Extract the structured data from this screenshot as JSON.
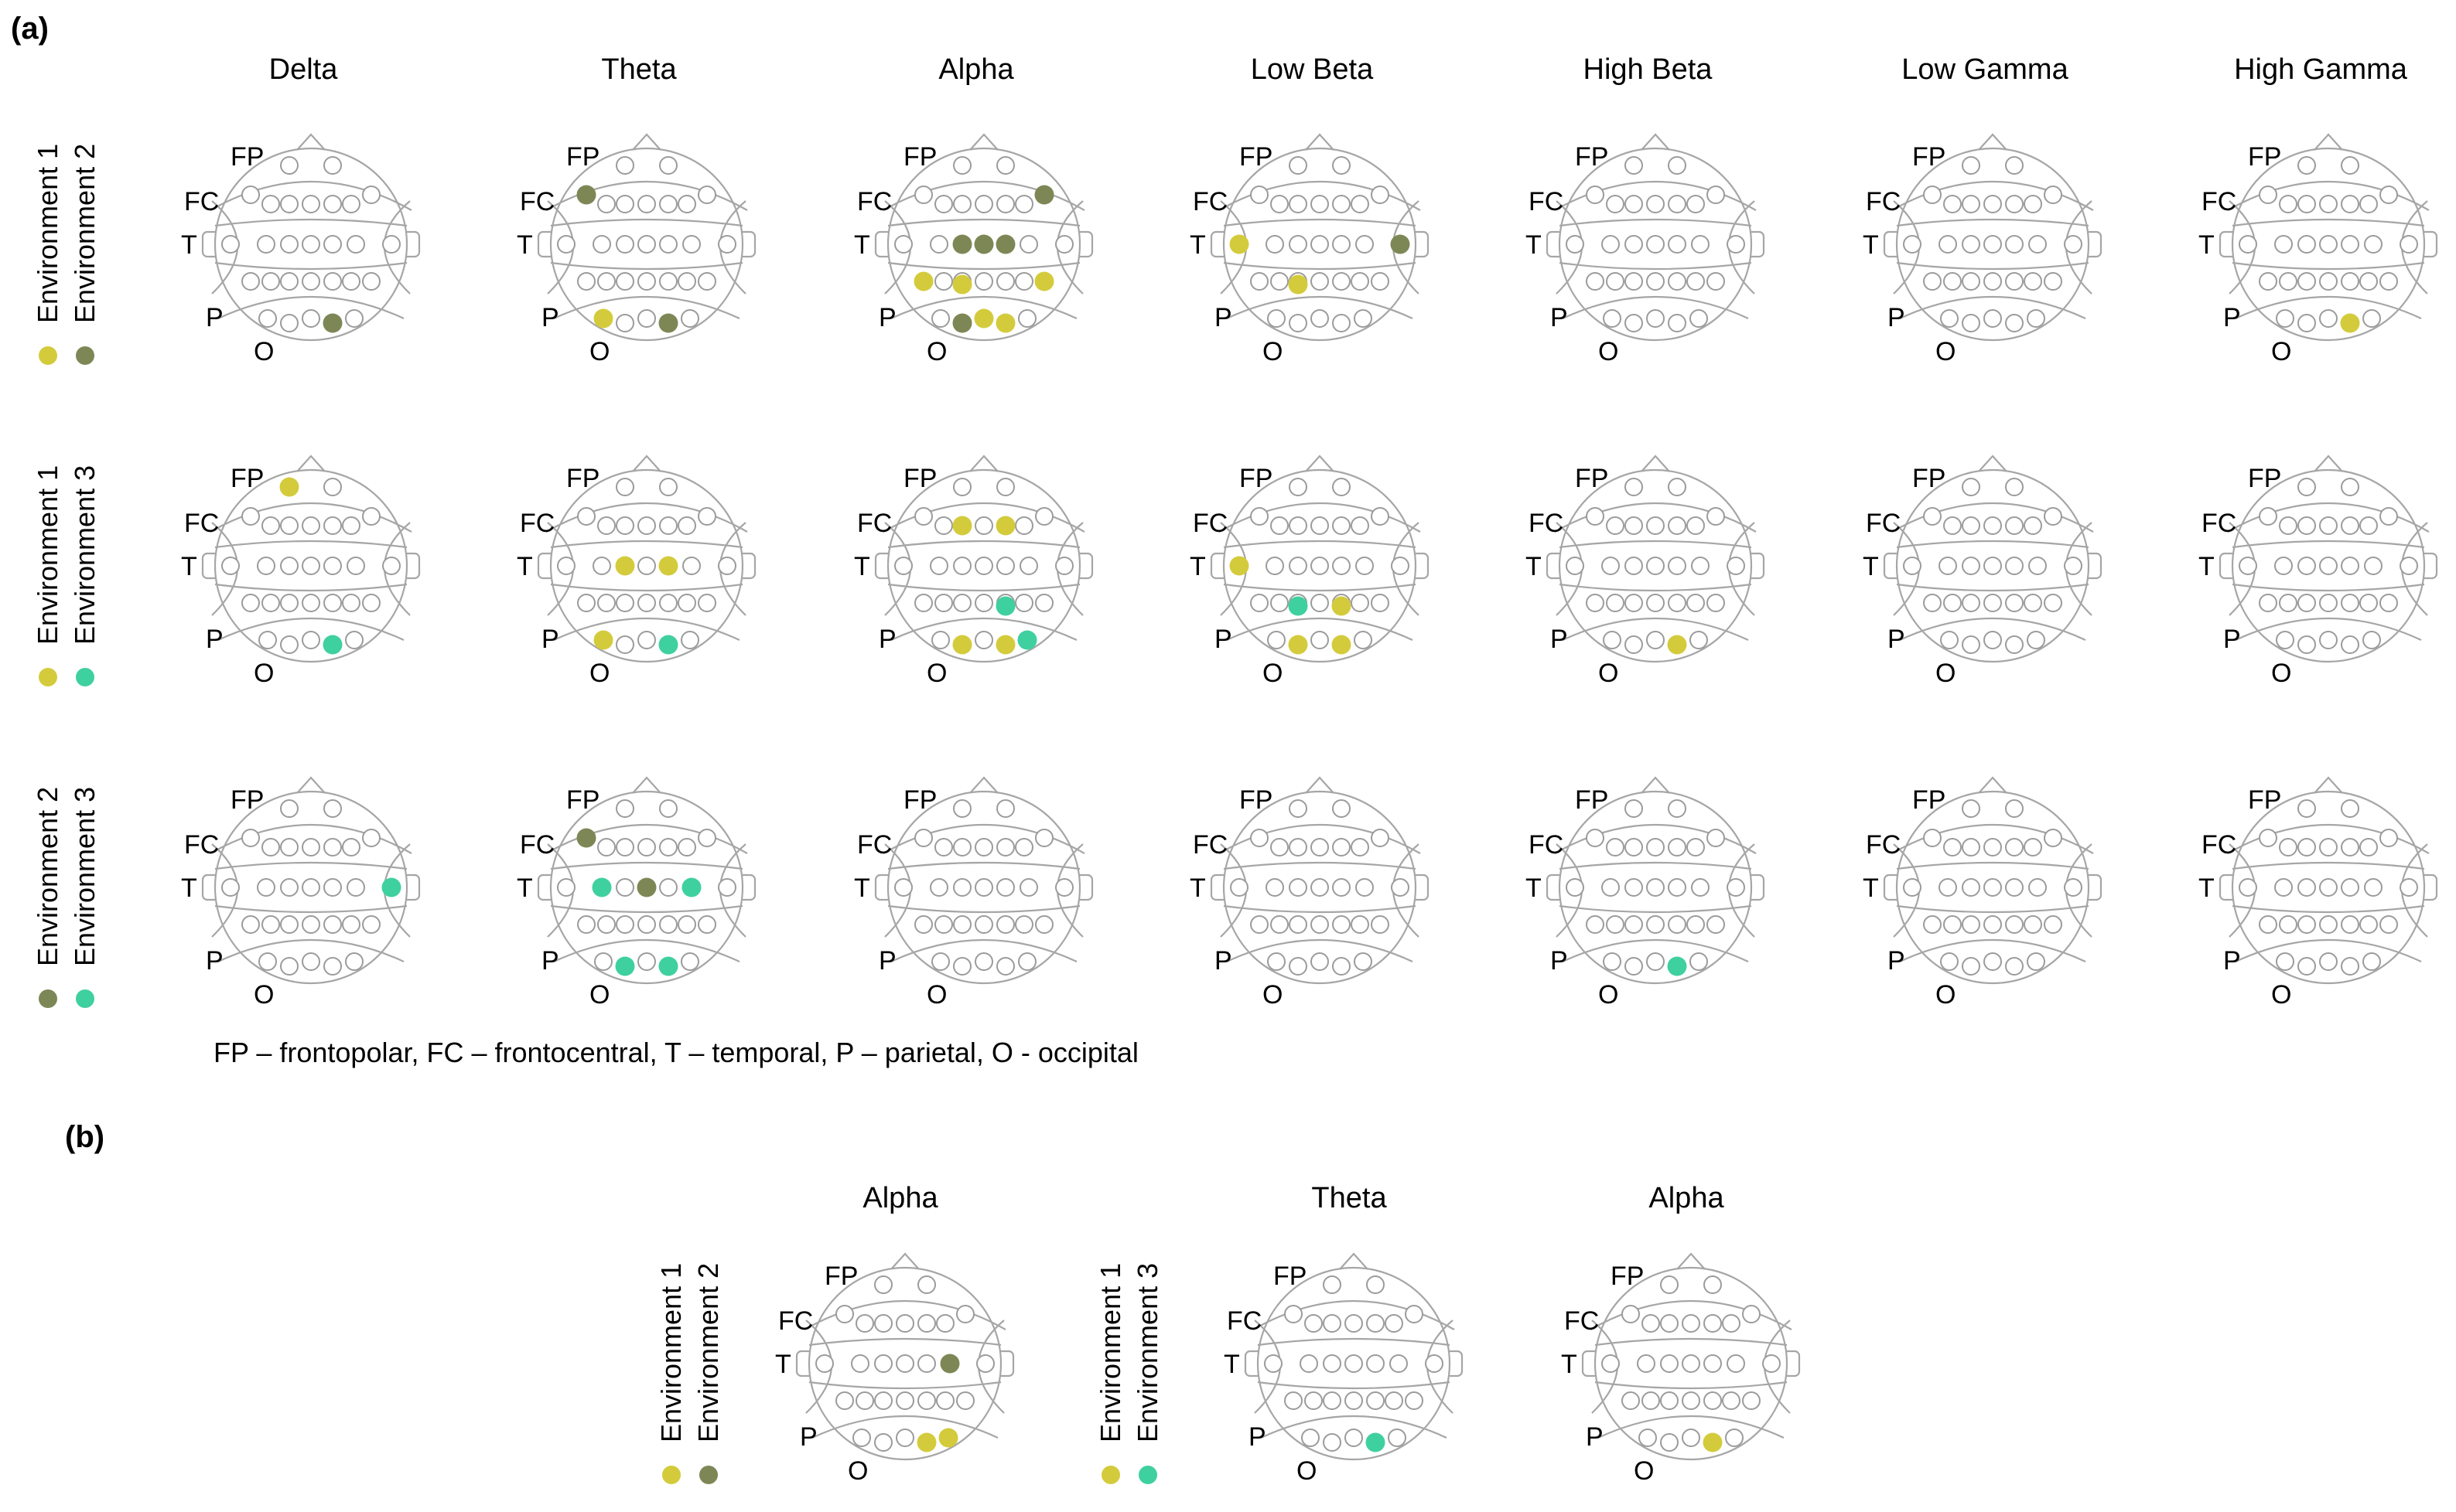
{
  "panel_labels": {
    "a": "(a)",
    "b": "(b)"
  },
  "colors": {
    "env1": "#d4cb3c",
    "env2": "#7d8756",
    "env3": "#3fd0a0",
    "outline": "#a6a6a6"
  },
  "region_labels": {
    "FP": "FP",
    "FC": "FC",
    "T": "T",
    "P": "P",
    "O": "O"
  },
  "footnote": "FP – frontopolar, FC – frontocentral, T – temporal, P – parietal, O - occipital",
  "panel_a": {
    "bands": [
      "Delta",
      "Theta",
      "Alpha",
      "Low Beta",
      "High Beta",
      "Low Gamma",
      "High Gamma"
    ],
    "rows": [
      {
        "legend": [
          {
            "label": "Environment 1",
            "env": "env1"
          },
          {
            "label": "Environment 2",
            "env": "env2"
          }
        ],
        "heads": [
          [
            {
              "e": "P5",
              "env": "env2"
            }
          ],
          [
            {
              "e": "FC1",
              "env": "env2"
            },
            {
              "e": "P1",
              "env": "env1"
            },
            {
              "e": "P5",
              "env": "env2"
            }
          ],
          [
            {
              "e": "FC5",
              "env": "env2"
            },
            {
              "e": "T3",
              "env": "env2"
            },
            {
              "e": "T4",
              "env": "env2"
            },
            {
              "e": "T5",
              "env": "env2"
            },
            {
              "e": "C1",
              "env": "env1"
            },
            {
              "e": "C2",
              "env": "env1"
            },
            {
              "e": "C5",
              "env": "env1"
            },
            {
              "e": "P2",
              "env": "env1"
            },
            {
              "e": "P4",
              "env": "env2"
            },
            {
              "e": "P5",
              "env": "env1"
            }
          ],
          [
            {
              "e": "T1",
              "env": "env1"
            },
            {
              "e": "T7",
              "env": "env2"
            },
            {
              "e": "C2",
              "env": "env1"
            }
          ],
          [],
          [],
          [
            {
              "e": "P5",
              "env": "env1"
            }
          ]
        ]
      },
      {
        "legend": [
          {
            "label": "Environment 1",
            "env": "env1"
          },
          {
            "label": "Environment 3",
            "env": "env3"
          }
        ],
        "heads": [
          [
            {
              "e": "FP1",
              "env": "env1"
            },
            {
              "e": "P5",
              "env": "env3"
            }
          ],
          [
            {
              "e": "T3",
              "env": "env1"
            },
            {
              "e": "T5",
              "env": "env1"
            },
            {
              "e": "P1",
              "env": "env1"
            },
            {
              "e": "P5",
              "env": "env3"
            }
          ],
          [
            {
              "e": "FC2",
              "env": "env1"
            },
            {
              "e": "FC4",
              "env": "env1"
            },
            {
              "e": "C4",
              "env": "env3"
            },
            {
              "e": "P6",
              "env": "env3"
            },
            {
              "e": "O1",
              "env": "env1"
            },
            {
              "e": "O2",
              "env": "env1"
            }
          ],
          [
            {
              "e": "T1",
              "env": "env1"
            },
            {
              "e": "C2",
              "env": "env3"
            },
            {
              "e": "C4",
              "env": "env1"
            },
            {
              "e": "O1",
              "env": "env1"
            },
            {
              "e": "O2",
              "env": "env1"
            }
          ],
          [
            {
              "e": "P5",
              "env": "env1"
            }
          ],
          [],
          []
        ]
      },
      {
        "legend": [
          {
            "label": "Environment 2",
            "env": "env2"
          },
          {
            "label": "Environment 3",
            "env": "env3"
          }
        ],
        "heads": [
          [
            {
              "e": "T7",
              "env": "env3"
            }
          ],
          [
            {
              "e": "FC1",
              "env": "env2"
            },
            {
              "e": "T2",
              "env": "env3"
            },
            {
              "e": "T4",
              "env": "env2"
            },
            {
              "e": "T6",
              "env": "env3"
            },
            {
              "e": "O1",
              "env": "env3"
            },
            {
              "e": "O2",
              "env": "env3"
            }
          ],
          [],
          [],
          [
            {
              "e": "P5",
              "env": "env3"
            }
          ],
          [],
          []
        ]
      }
    ]
  },
  "panel_b": {
    "groups": [
      {
        "legend": [
          {
            "label": "Environment 1",
            "env": "env1"
          },
          {
            "label": "Environment 2",
            "env": "env2"
          }
        ],
        "heads": [
          {
            "band": "Alpha",
            "active": [
              {
                "e": "T6",
                "env": "env2"
              },
              {
                "e": "P6",
                "env": "env1"
              },
              {
                "e": "P5",
                "env": "env1"
              }
            ]
          }
        ]
      },
      {
        "legend": [
          {
            "label": "Environment 1",
            "env": "env1"
          },
          {
            "label": "Environment 3",
            "env": "env3"
          }
        ],
        "heads": [
          {
            "band": "Theta",
            "active": [
              {
                "e": "P5",
                "env": "env3"
              }
            ]
          },
          {
            "band": "Alpha",
            "active": [
              {
                "e": "P5",
                "env": "env1"
              }
            ]
          }
        ]
      }
    ]
  }
}
